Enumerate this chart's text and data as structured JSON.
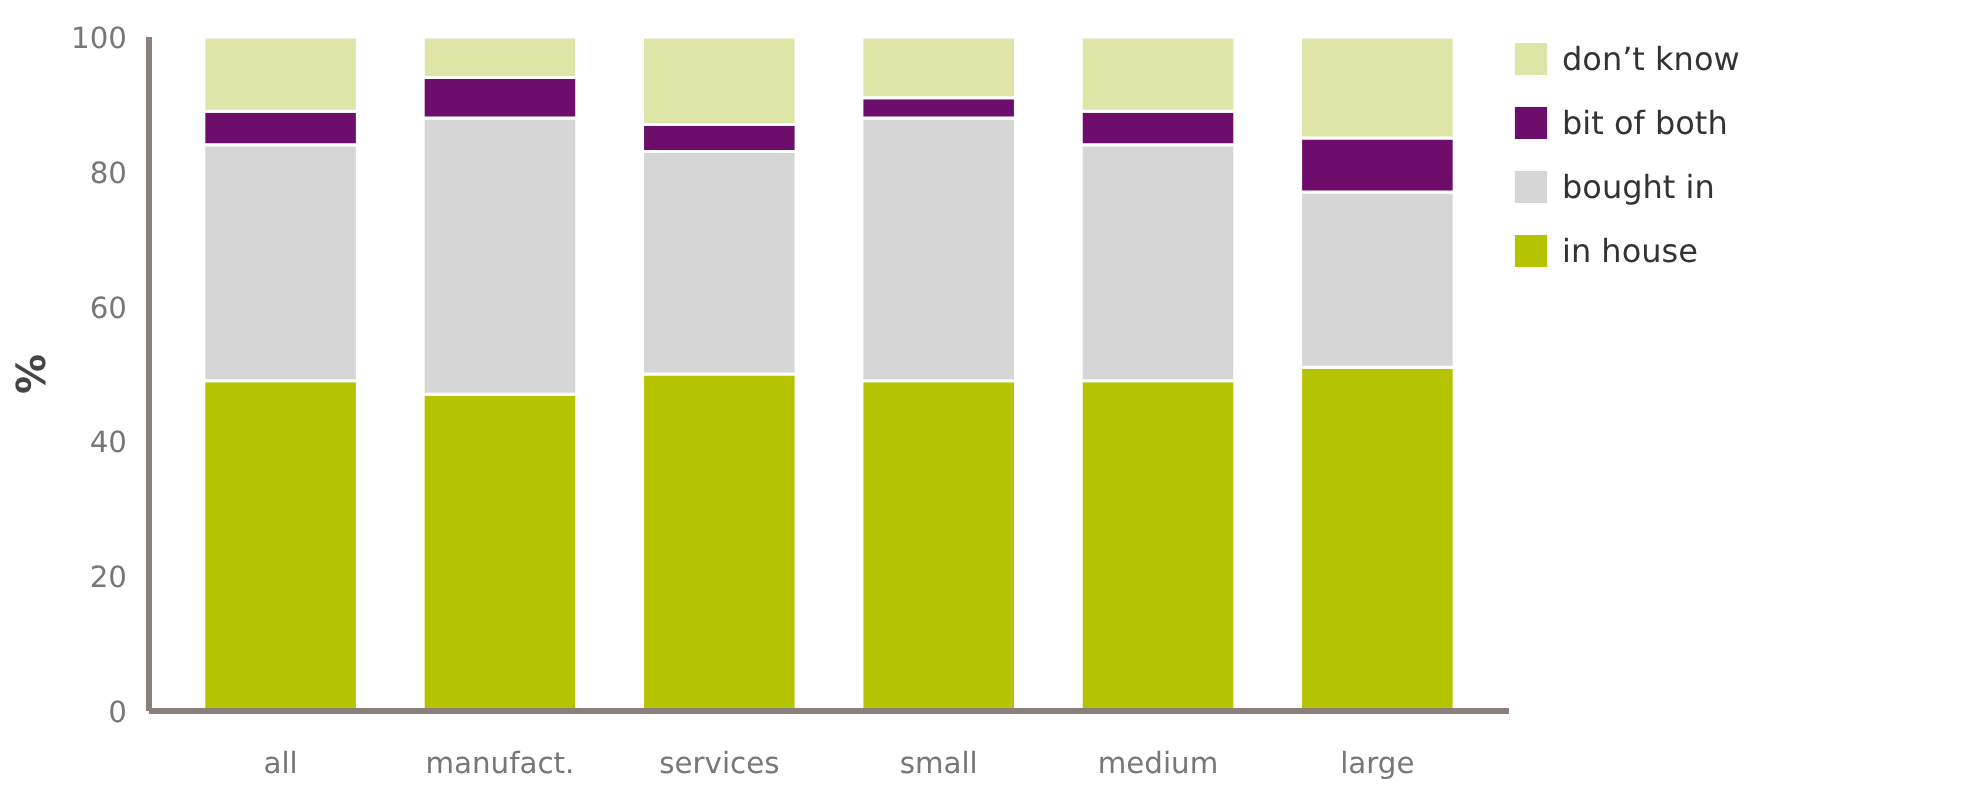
{
  "chart_data": {
    "type": "bar",
    "stacked": true,
    "ylabel": "%",
    "categories": [
      "all",
      "manufact.",
      "services",
      "small",
      "medium",
      "large"
    ],
    "ylim": [
      0,
      100
    ],
    "yticks": [
      0,
      20,
      40,
      60,
      80,
      100
    ],
    "grid": false,
    "legend": "right",
    "series": [
      {
        "name": "in house",
        "color": "#b5c400",
        "values": [
          49,
          47,
          50,
          49,
          49,
          51
        ]
      },
      {
        "name": "bought in",
        "color": "#d6d6d6",
        "values": [
          35,
          41,
          33,
          39,
          35,
          26
        ]
      },
      {
        "name": "bit of both",
        "color": "#6e0d6b",
        "values": [
          5,
          6,
          4,
          3,
          5,
          8
        ]
      },
      {
        "name": "don’t know",
        "color": "#dfe5a6",
        "values": [
          11,
          6,
          13,
          9,
          11,
          15
        ]
      }
    ]
  }
}
